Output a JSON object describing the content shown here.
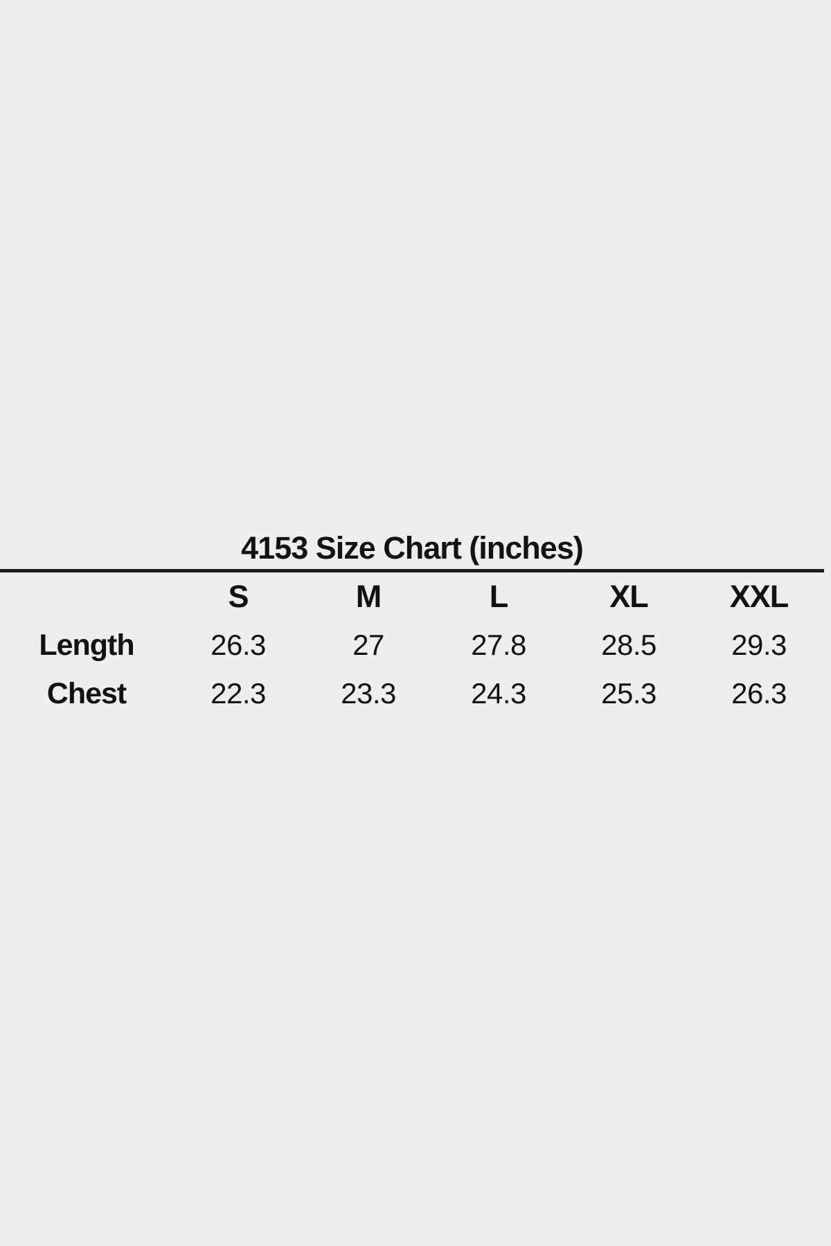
{
  "colors": {
    "background": "#eeeeef",
    "text": "#121212",
    "rule": "#1a1a1a"
  },
  "chart_data": {
    "type": "table",
    "title": "4153 Size Chart (inches)",
    "units": "inches",
    "columns": [
      "",
      "S",
      "M",
      "L",
      "XL",
      "XXL"
    ],
    "rows": [
      {
        "label": "Length",
        "values": [
          "26.3",
          "27",
          "27.8",
          "28.5",
          "29.3"
        ]
      },
      {
        "label": "Chest",
        "values": [
          "22.3",
          "23.3",
          "24.3",
          "25.3",
          "26.3"
        ]
      }
    ],
    "layout_hints": {
      "title_position": "top-center",
      "rule_under_title": true,
      "grid": "off",
      "first_column": "row-labels"
    }
  }
}
